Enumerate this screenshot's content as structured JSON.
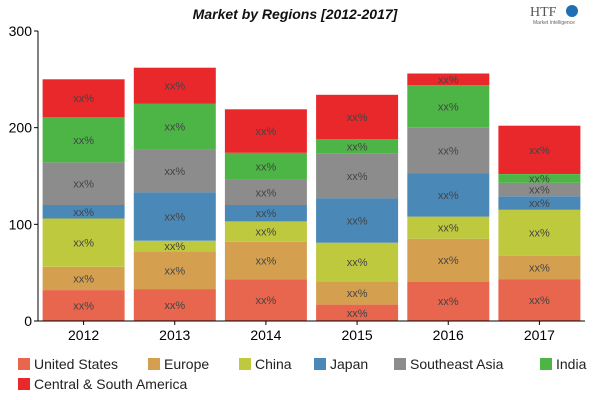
{
  "logo": {
    "mark": "HTF",
    "subtext": "Market Intelligence"
  },
  "chart_data": {
    "type": "bar",
    "stacked": true,
    "title": "Market by Regions [2012-2017]",
    "categories": [
      "2012",
      "2013",
      "2014",
      "2015",
      "2016",
      "2017"
    ],
    "ylim": [
      0,
      300
    ],
    "yticks": [
      0,
      100,
      200,
      300
    ],
    "grid": false,
    "legend_position": "bottom",
    "bar_label": "xx%",
    "series": [
      {
        "name": "United States",
        "color": "#E8654E",
        "values": [
          32,
          33,
          43,
          17,
          41,
          43
        ]
      },
      {
        "name": "Europe",
        "color": "#D4A050",
        "values": [
          24,
          39,
          39,
          24,
          44,
          25
        ]
      },
      {
        "name": "China",
        "color": "#BFC93E",
        "values": [
          50,
          11,
          21,
          40,
          23,
          47
        ]
      },
      {
        "name": "Japan",
        "color": "#4A88B7",
        "values": [
          14,
          50,
          17,
          46,
          45,
          14
        ]
      },
      {
        "name": "Southeast Asia",
        "color": "#8C8C8C",
        "values": [
          44,
          44,
          26,
          46,
          47,
          14
        ]
      },
      {
        "name": "India",
        "color": "#4CB545",
        "values": [
          47,
          48,
          28,
          15,
          44,
          9
        ]
      },
      {
        "name": "Central & South America",
        "color": "#E8282B",
        "values": [
          39,
          37,
          45,
          46,
          12,
          50
        ]
      }
    ]
  }
}
